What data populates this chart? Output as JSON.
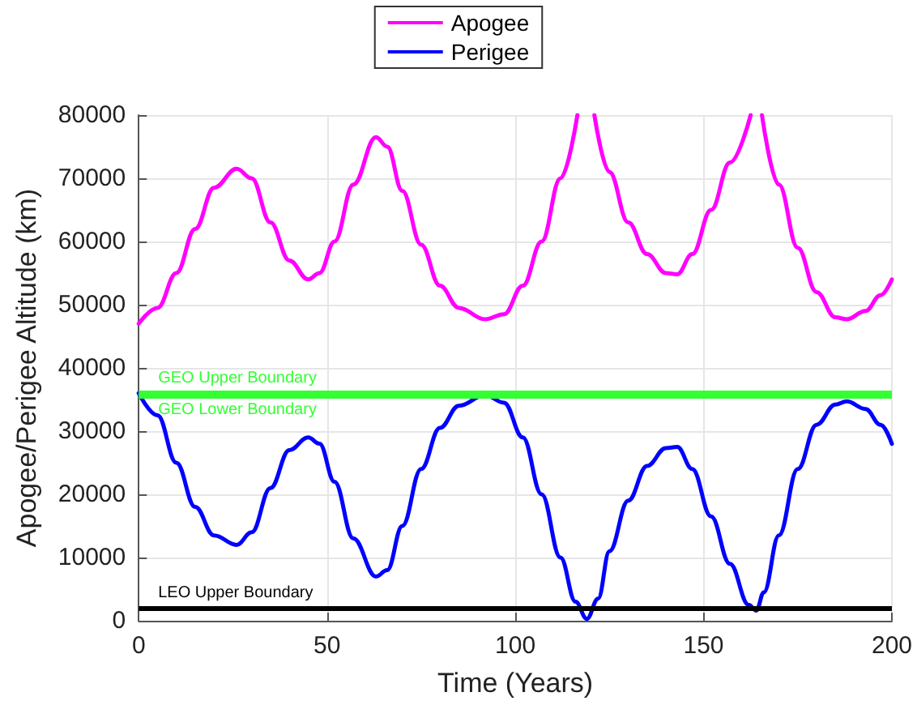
{
  "chart_data": {
    "type": "line",
    "xlabel": "Time (Years)",
    "ylabel": "Apogee/Perigee Altitude (km)",
    "xlim": [
      0,
      200
    ],
    "xticks": [
      0,
      50,
      100,
      150,
      200
    ],
    "ylim": [
      0,
      80000
    ],
    "yticks": [
      0,
      10000,
      20000,
      30000,
      40000,
      50000,
      60000,
      70000,
      80000
    ],
    "grid": true,
    "legend": "top",
    "marker": "none",
    "line_style": "solid",
    "series": [
      {
        "name": "Apogee",
        "color": "#ff00ff",
        "x": [
          0,
          5,
          10,
          15,
          20,
          26,
          30,
          35,
          40,
          45,
          48,
          52,
          57,
          63,
          66,
          70,
          75,
          80,
          85,
          92,
          97,
          102,
          107,
          112,
          116.5,
          119,
          121,
          125,
          130,
          135,
          140,
          143,
          147,
          152,
          157,
          162.5,
          164,
          165.5,
          170,
          175,
          180,
          185,
          188,
          193,
          197,
          200
        ],
        "values": [
          47000,
          49500,
          55000,
          62000,
          68500,
          71500,
          70000,
          63000,
          57000,
          54000,
          55000,
          60000,
          69000,
          76500,
          75000,
          68000,
          59500,
          53000,
          49500,
          47700,
          48500,
          53000,
          60000,
          70000,
          80000,
          null,
          80000,
          71000,
          63000,
          58000,
          55000,
          54800,
          58000,
          65000,
          72500,
          80000,
          null,
          80000,
          69000,
          59000,
          52000,
          48000,
          47700,
          49000,
          51500,
          54000
        ]
      },
      {
        "name": "Perigee",
        "color": "#0000ff",
        "x": [
          0,
          5,
          10,
          15,
          20,
          26,
          30,
          35,
          40,
          45,
          48,
          52,
          57,
          63,
          66,
          70,
          75,
          80,
          85,
          92,
          97,
          102,
          107,
          112,
          116,
          119,
          122,
          125,
          130,
          135,
          140,
          143,
          147,
          152,
          157,
          162,
          164,
          166,
          170,
          175,
          180,
          185,
          188,
          193,
          197,
          200
        ],
        "values": [
          36000,
          32500,
          25000,
          18000,
          13500,
          12000,
          14000,
          21000,
          27000,
          29000,
          28000,
          22000,
          13000,
          7000,
          8000,
          15000,
          24000,
          30500,
          34000,
          35700,
          34500,
          29000,
          20000,
          10000,
          3000,
          300,
          3500,
          11000,
          19000,
          24500,
          27300,
          27500,
          24000,
          16500,
          9000,
          2500,
          1600,
          4500,
          13500,
          24000,
          31000,
          34200,
          34700,
          33500,
          31000,
          28000
        ]
      }
    ],
    "ref_lines": [
      {
        "axis": "y",
        "value": 36000,
        "label": "GEO Upper Boundary",
        "color": "#33ff33"
      },
      {
        "axis": "y",
        "value": 35600,
        "label": "GEO Lower Boundary",
        "color": "#33ff33"
      },
      {
        "axis": "y",
        "value": 2000,
        "label": "LEO Upper Boundary",
        "color": "#000000"
      }
    ]
  }
}
